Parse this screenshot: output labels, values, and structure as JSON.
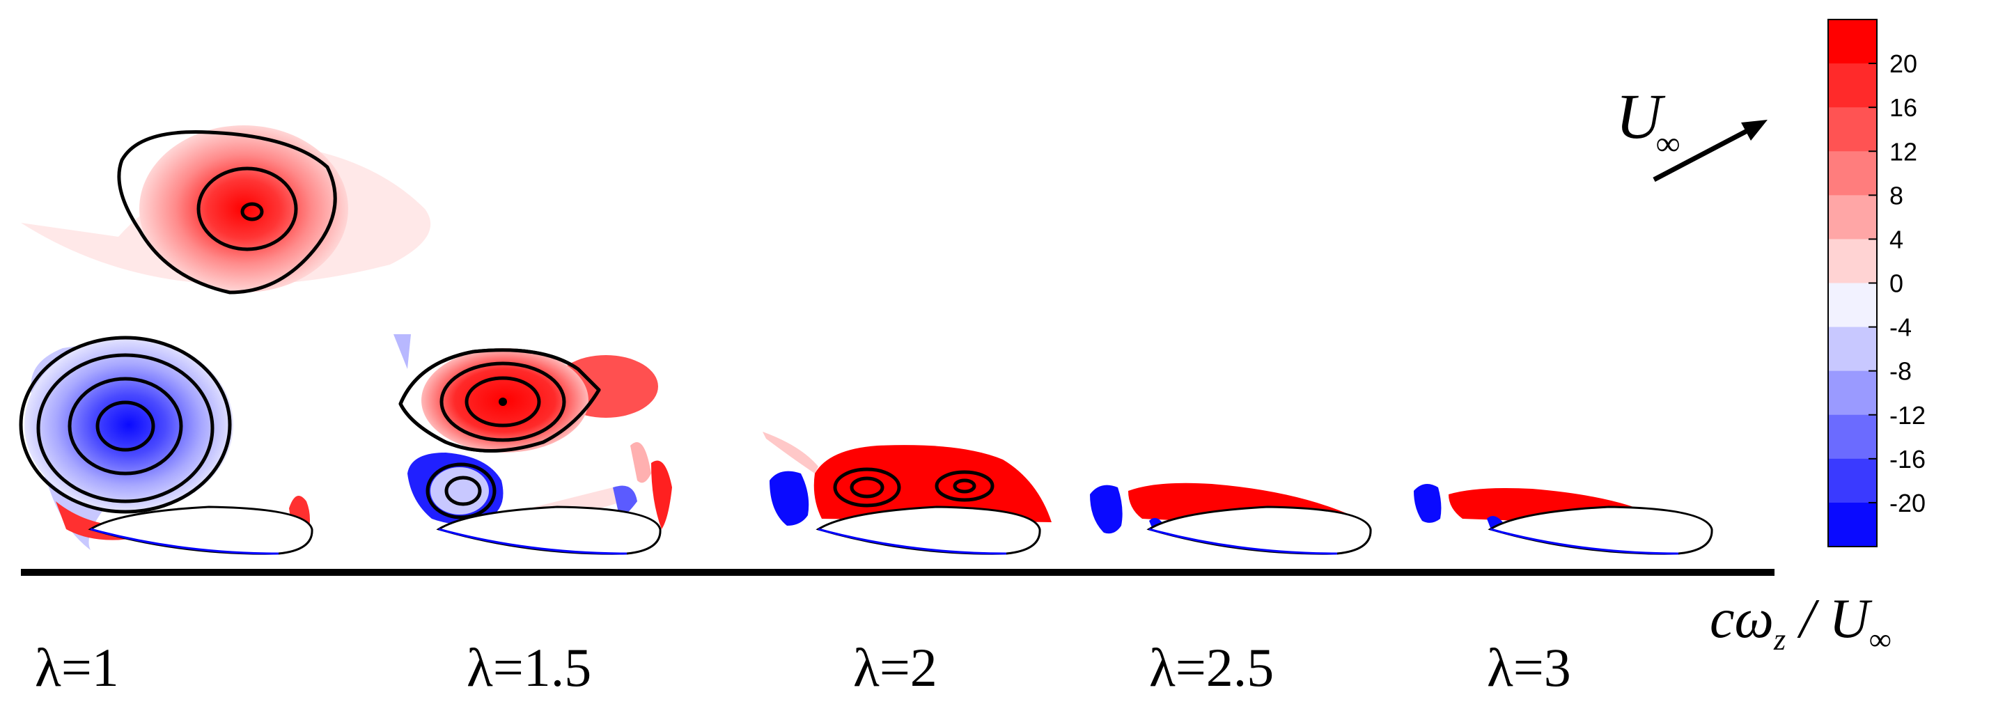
{
  "figure": {
    "panels": [
      {
        "label": "λ=1"
      },
      {
        "label": "λ=1.5"
      },
      {
        "label": "λ=2"
      },
      {
        "label": "λ=2.5"
      },
      {
        "label": "λ=3"
      }
    ],
    "freestream_symbol": "U",
    "freestream_subscript": "∞",
    "colorbar": {
      "title_c": "c",
      "title_omega": "ω",
      "title_sub_z": "z",
      "title_slash": " / U",
      "title_sub_inf": "∞",
      "ticks": [
        "20",
        "16",
        "12",
        "8",
        "4",
        "0",
        "-4",
        "-8",
        "-12",
        "-16",
        "-20"
      ],
      "colors": [
        "#ff0000",
        "#ff2a2a",
        "#ff5353",
        "#ff7d7d",
        "#ffa6a6",
        "#ffd3d3",
        "#f2f2ff",
        "#c8c8ff",
        "#9a9aff",
        "#6b6bff",
        "#3a3aff",
        "#0a0aff"
      ]
    },
    "colors": {
      "positive": "#ff0000",
      "negative": "#0000ff",
      "outline": "#000000"
    }
  }
}
